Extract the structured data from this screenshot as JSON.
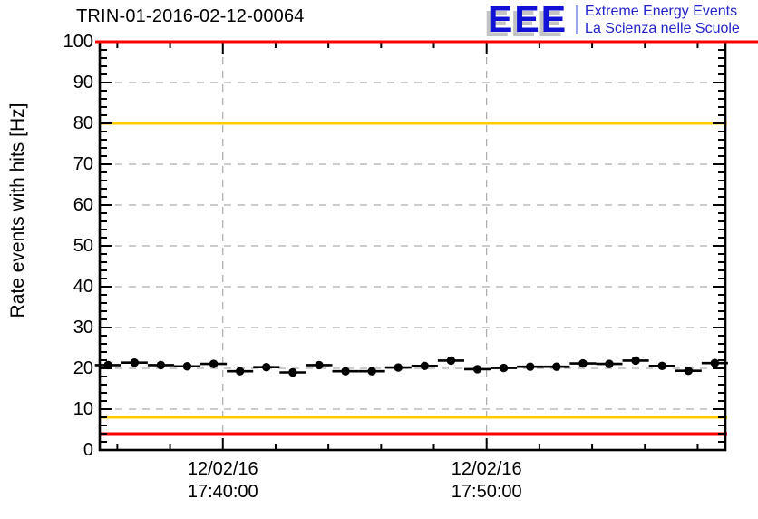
{
  "header": {
    "title": "TRIN-01-2016-02-12-00064",
    "logo": {
      "acronym": "EEE",
      "line1": "Extreme Energy Events",
      "line2": "La Scienza nelle Scuole",
      "acronym_color": "#1212d6",
      "text_color": "#2323cc",
      "shadow_color": "#c3c3c3",
      "divider_color": "#9aa5e6"
    }
  },
  "chart_data": {
    "type": "scatter",
    "title": "TRIN-01-2016-02-12-00064",
    "xlabel": "",
    "ylabel": "Rate events with hits [Hz]",
    "ylim": [
      0,
      100
    ],
    "y_ticks": [
      0,
      10,
      20,
      30,
      40,
      50,
      60,
      70,
      80,
      90,
      100
    ],
    "y_minor_step": 2,
    "grid": true,
    "grid_color": "#999999",
    "x_axis": {
      "min_time": "17:35:20",
      "max_time": "17:59:03",
      "minor_step_minutes": 2,
      "major_ticks": [
        {
          "date": "12/02/16",
          "time": "17:40:00"
        },
        {
          "date": "12/02/16",
          "time": "17:50:00"
        }
      ]
    },
    "threshold_lines": [
      {
        "name": "max-alarm",
        "value": 100,
        "color": "#ff0000"
      },
      {
        "name": "max-warning",
        "value": 80,
        "color": "#ffcc00"
      },
      {
        "name": "min-warning",
        "value": 8,
        "color": "#ffcc00"
      },
      {
        "name": "min-alarm",
        "value": 4,
        "color": "#ff0000"
      }
    ],
    "series": [
      {
        "name": "rate-events-with-hits",
        "marker": "filled-circle",
        "color": "#000000",
        "x_error_minutes": 0.5,
        "y_error_hz": 0.6,
        "x_times": [
          "17:35:39",
          "17:36:39",
          "17:37:39",
          "17:38:39",
          "17:39:39",
          "17:40:39",
          "17:41:39",
          "17:42:39",
          "17:43:39",
          "17:44:39",
          "17:45:39",
          "17:46:39",
          "17:47:39",
          "17:48:39",
          "17:49:39",
          "17:50:39",
          "17:51:39",
          "17:52:39",
          "17:53:39",
          "17:54:39",
          "17:55:39",
          "17:56:39",
          "17:57:39",
          "17:58:39"
        ],
        "values": [
          20.8,
          21.4,
          20.8,
          20.5,
          21.1,
          19.3,
          20.3,
          19.0,
          20.8,
          19.3,
          19.3,
          20.2,
          20.6,
          21.9,
          19.8,
          20.1,
          20.4,
          20.4,
          21.2,
          21.1,
          21.9,
          20.6,
          19.4,
          21.3
        ]
      }
    ]
  }
}
